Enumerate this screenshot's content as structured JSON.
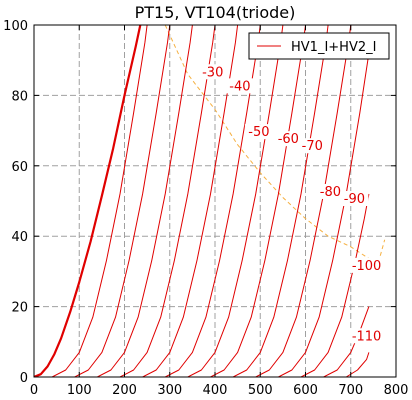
{
  "chart_data": {
    "type": "line",
    "title": "PT15, VT104(triode)",
    "xlabel": "",
    "ylabel": "",
    "xlim": [
      0,
      800
    ],
    "ylim": [
      0,
      100
    ],
    "xticks": [
      "0",
      "100",
      "200",
      "300",
      "400",
      "500",
      "600",
      "700",
      "800"
    ],
    "yticks": [
      "0",
      "20",
      "40",
      "60",
      "80",
      "100"
    ],
    "grid": true,
    "legend": {
      "position": "top-right",
      "entries": [
        "HV1_I+HV2_I"
      ]
    },
    "colors": {
      "curves": "#e00000",
      "load_line": "#f5b041",
      "grid": "#a0a0a0"
    },
    "series": [
      {
        "grid_voltage": 0,
        "points": [
          [
            0,
            0
          ],
          [
            15,
            0.8
          ],
          [
            30,
            3
          ],
          [
            45,
            6.5
          ],
          [
            60,
            11
          ],
          [
            80,
            18.5
          ],
          [
            100,
            27
          ],
          [
            125,
            38.5
          ],
          [
            150,
            51.5
          ],
          [
            175,
            65
          ],
          [
            200,
            80
          ],
          [
            225,
            94
          ],
          [
            235,
            100
          ]
        ]
      },
      {
        "points": [
          [
            40,
            0
          ],
          [
            70,
            2
          ],
          [
            100,
            7
          ],
          [
            130,
            17
          ],
          [
            160,
            33
          ],
          [
            190,
            52
          ],
          [
            220,
            75
          ],
          [
            245,
            95
          ],
          [
            250,
            100
          ]
        ]
      },
      {
        "points": [
          [
            90,
            0
          ],
          [
            120,
            2
          ],
          [
            150,
            7
          ],
          [
            180,
            17
          ],
          [
            210,
            33
          ],
          [
            240,
            52
          ],
          [
            270,
            75
          ],
          [
            295,
            95
          ],
          [
            300,
            100
          ]
        ]
      },
      {
        "points": [
          [
            140,
            0
          ],
          [
            170,
            2
          ],
          [
            200,
            7
          ],
          [
            230,
            17
          ],
          [
            260,
            33
          ],
          [
            290,
            52
          ],
          [
            320,
            75
          ],
          [
            345,
            95
          ],
          [
            350,
            100
          ]
        ]
      },
      {
        "points": [
          [
            190,
            0
          ],
          [
            220,
            2
          ],
          [
            250,
            7
          ],
          [
            280,
            17
          ],
          [
            310,
            33
          ],
          [
            340,
            52
          ],
          [
            370,
            75
          ],
          [
            395,
            95
          ],
          [
            400,
            100
          ]
        ]
      },
      {
        "points": [
          [
            240,
            0
          ],
          [
            270,
            2
          ],
          [
            300,
            7
          ],
          [
            330,
            17
          ],
          [
            360,
            33
          ],
          [
            390,
            52
          ],
          [
            420,
            75
          ],
          [
            445,
            95
          ],
          [
            450,
            100
          ]
        ]
      },
      {
        "points": [
          [
            290,
            0
          ],
          [
            320,
            2
          ],
          [
            350,
            7
          ],
          [
            380,
            17
          ],
          [
            410,
            33
          ],
          [
            440,
            52
          ],
          [
            470,
            75
          ],
          [
            495,
            95
          ],
          [
            500,
            100
          ]
        ]
      },
      {
        "points": [
          [
            340,
            0
          ],
          [
            370,
            2
          ],
          [
            400,
            7
          ],
          [
            430,
            17
          ],
          [
            460,
            33
          ],
          [
            490,
            52
          ],
          [
            520,
            75
          ],
          [
            545,
            95
          ],
          [
            550,
            100
          ]
        ]
      },
      {
        "points": [
          [
            390,
            0
          ],
          [
            420,
            2
          ],
          [
            450,
            7
          ],
          [
            480,
            17
          ],
          [
            510,
            33
          ],
          [
            540,
            52
          ],
          [
            570,
            75
          ],
          [
            595,
            95
          ],
          [
            600,
            100
          ]
        ]
      },
      {
        "points": [
          [
            440,
            0
          ],
          [
            470,
            2
          ],
          [
            500,
            7
          ],
          [
            530,
            17
          ],
          [
            560,
            33
          ],
          [
            590,
            52
          ],
          [
            620,
            75
          ],
          [
            645,
            95
          ],
          [
            650,
            100
          ]
        ]
      },
      {
        "points": [
          [
            490,
            0
          ],
          [
            520,
            2
          ],
          [
            550,
            7
          ],
          [
            580,
            17
          ],
          [
            610,
            33
          ],
          [
            640,
            52
          ],
          [
            670,
            75
          ],
          [
            695,
            95
          ],
          [
            700,
            100
          ]
        ]
      },
      {
        "points": [
          [
            540,
            0
          ],
          [
            570,
            2
          ],
          [
            600,
            7
          ],
          [
            630,
            17
          ],
          [
            660,
            33
          ],
          [
            690,
            52
          ],
          [
            720,
            75
          ],
          [
            740,
            92
          ]
        ]
      },
      {
        "points": [
          [
            590,
            0
          ],
          [
            620,
            2
          ],
          [
            650,
            7
          ],
          [
            680,
            17
          ],
          [
            710,
            33
          ],
          [
            730,
            45
          ],
          [
            740,
            52
          ]
        ]
      },
      {
        "points": [
          [
            640,
            0
          ],
          [
            670,
            2
          ],
          [
            700,
            7
          ],
          [
            720,
            13
          ],
          [
            740,
            20
          ]
        ]
      },
      {
        "points": [
          [
            690,
            0
          ],
          [
            715,
            2
          ],
          [
            735,
            5
          ],
          [
            740,
            7
          ]
        ]
      }
    ],
    "load_line": [
      [
        290,
        100
      ],
      [
        340,
        86
      ],
      [
        400,
        76
      ],
      [
        450,
        66
      ],
      [
        500,
        58
      ],
      [
        550,
        51
      ],
      [
        600,
        45
      ],
      [
        650,
        40
      ],
      [
        700,
        37
      ],
      [
        760,
        32
      ],
      [
        775,
        39
      ]
    ],
    "annotations": [
      {
        "text": "-30",
        "x": 395,
        "y": 86
      },
      {
        "text": "-40",
        "x": 455,
        "y": 82
      },
      {
        "text": "-50",
        "x": 497,
        "y": 69
      },
      {
        "text": "-60",
        "x": 562,
        "y": 67
      },
      {
        "text": "-70",
        "x": 615,
        "y": 65
      },
      {
        "text": "-80",
        "x": 655,
        "y": 52
      },
      {
        "text": "-90",
        "x": 708,
        "y": 50
      },
      {
        "text": "-100",
        "x": 735,
        "y": 31
      },
      {
        "text": "-110",
        "x": 735,
        "y": 11
      }
    ]
  }
}
